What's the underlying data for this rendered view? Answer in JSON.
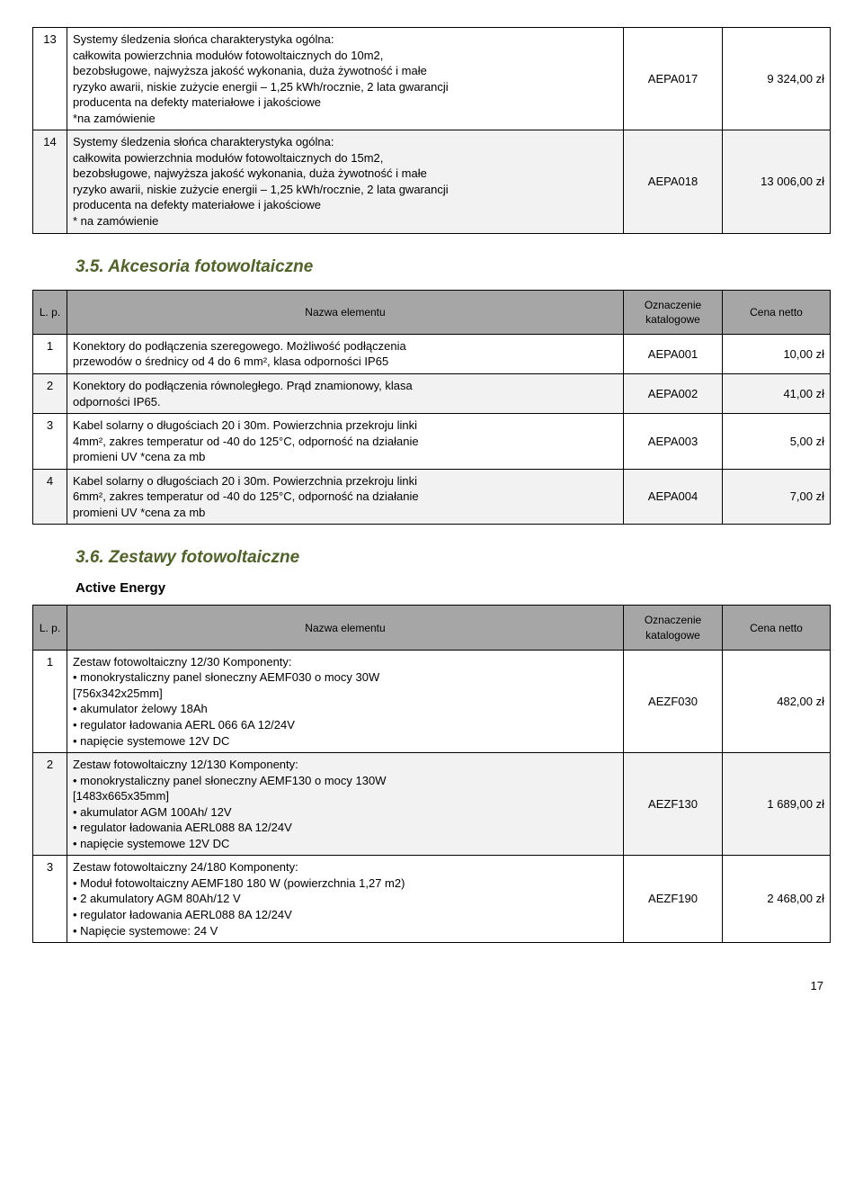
{
  "table_top": {
    "rows": [
      {
        "lp": "13",
        "name": "Systemy śledzenia słońca charakterystyka ogólna:\ncałkowita powierzchnia modułów fotowoltaicznych do 10m2,\nbezobsługowe, najwyższa jakość wykonania, duża żywotność i małe\nryzyko awarii, niskie zużycie energii – 1,25 kWh/rocznie, 2 lata gwarancji\nproducenta na defekty materiałowe i jakościowe\n*na zamówienie",
        "code": "AEPA017",
        "price": "9 324,00 zł",
        "shade": "light"
      },
      {
        "lp": "14",
        "name": "Systemy śledzenia słońca charakterystyka ogólna:\ncałkowita powierzchnia modułów fotowoltaicznych do 15m2,\nbezobsługowe, najwyższa jakość wykonania, duża żywotność i małe\nryzyko awarii, niskie zużycie energii – 1,25 kWh/rocznie, 2 lata gwarancji\nproducenta na defekty materiałowe i jakościowe\n* na zamówienie",
        "code": "AEPA018",
        "price": "13 006,00 zł",
        "shade": "shade"
      }
    ]
  },
  "section35": {
    "title": "3.5.     Akcesoria fotowoltaiczne",
    "header": {
      "lp": "L. p.",
      "name": "Nazwa elementu",
      "code": "Oznaczenie\nkatalogowe",
      "price": "Cena netto"
    },
    "rows": [
      {
        "lp": "1",
        "name": "Konektory do podłączenia szeregowego. Możliwość podłączenia\nprzewodów  o średnicy od 4 do 6 mm², klasa odporności IP65",
        "code": "AEPA001",
        "price": "10,00 zł",
        "shade": "light"
      },
      {
        "lp": "2",
        "name": "Konektory do podłączenia równoległego. Prąd znamionowy, klasa\nodporności IP65.",
        "code": "AEPA002",
        "price": "41,00 zł",
        "shade": "shade"
      },
      {
        "lp": "3",
        "name": "Kabel solarny o długościach 20 i 30m. Powierzchnia przekroju linki\n4mm², zakres temperatur od -40 do 125°C, odporność na działanie\npromieni UV *cena za mb",
        "code": "AEPA003",
        "price": "5,00 zł",
        "shade": "light"
      },
      {
        "lp": "4",
        "name": "Kabel solarny o długościach 20 i 30m. Powierzchnia przekroju linki\n6mm², zakres temperatur od -40 do 125°C, odporność na działanie\npromieni UV *cena za mb",
        "code": "AEPA004",
        "price": "7,00 zł",
        "shade": "shade"
      }
    ]
  },
  "section36": {
    "title": "3.6.     Zestawy fotowoltaiczne",
    "subtitle": "Active Energy",
    "header": {
      "lp": "L. p.",
      "name": "Nazwa elementu",
      "code": "Oznaczenie\nkatalogowe",
      "price": "Cena netto"
    },
    "rows": [
      {
        "lp": "1",
        "name": "Zestaw fotowoltaiczny 12/30 Komponenty:\n• monokrystaliczny panel słoneczny AEMF030 o mocy 30W\n[756x342x25mm]\n• akumulator żelowy  18Ah\n• regulator ładowania AERL 066 6A 12/24V\n• napięcie systemowe 12V DC",
        "code": "AEZF030",
        "price": "482,00 zł",
        "shade": "light"
      },
      {
        "lp": "2",
        "name": "Zestaw fotowoltaiczny 12/130 Komponenty:\n• monokrystaliczny panel słoneczny AEMF130 o mocy 130W\n[1483x665x35mm]\n• akumulator AGM 100Ah/ 12V\n• regulator ładowania AERL088 8A 12/24V\n• napięcie systemowe 12V DC\n ",
        "code": "AEZF130",
        "price": "1 689,00 zł",
        "shade": "shade"
      },
      {
        "lp": "3",
        "name": "Zestaw fotowoltaiczny 24/180 Komponenty:\n• Moduł fotowoltaiczny AEMF180 180 W (powierzchnia 1,27 m2)\n• 2 akumulatory AGM  80Ah/12 V\n• regulator ładowania AERL088 8A 12/24V\n• Napięcie systemowe: 24 V",
        "code": "AEZF190",
        "price": "2 468,00 zł",
        "shade": "light"
      }
    ]
  },
  "page_number": "17"
}
